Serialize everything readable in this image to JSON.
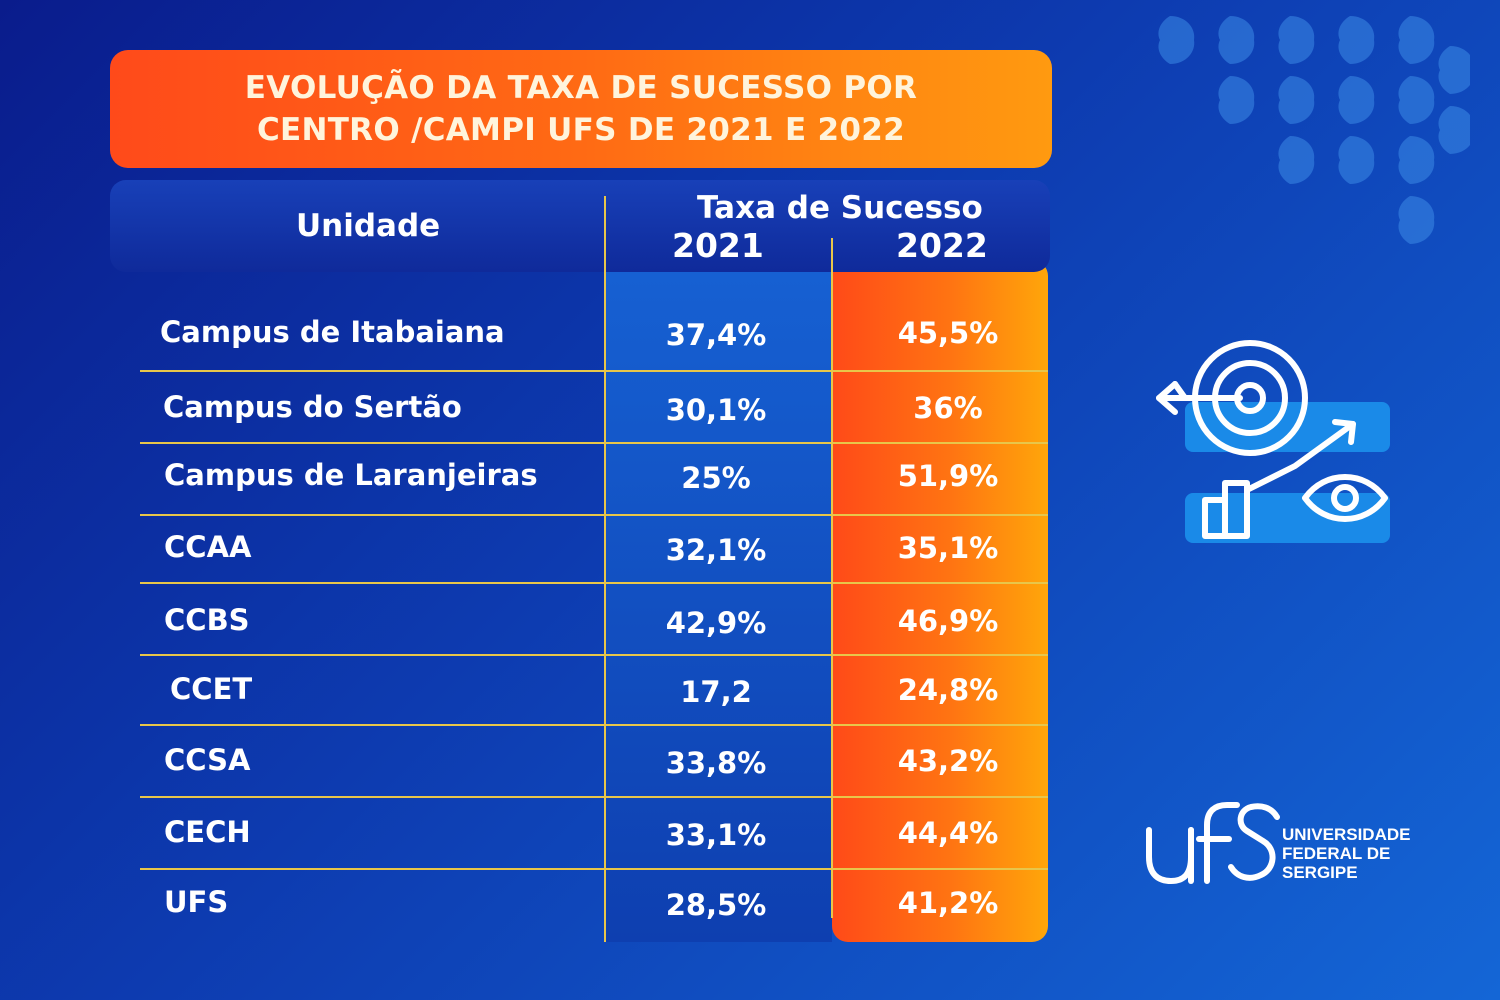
{
  "title": {
    "line1": "EVOLUÇÃO DA TAXA DE SUCESSO POR",
    "line2": "CENTRO /CAMPI UFS DE 2021 E 2022"
  },
  "header": {
    "unidade": "Unidade",
    "taxa": "Taxa de Sucesso",
    "year1": "2021",
    "year2": "2022"
  },
  "chart_data": {
    "type": "table",
    "title": "EVOLUÇÃO DA TAXA DE SUCESSO POR CENTRO /CAMPI UFS DE 2021 E 2022",
    "columns": [
      "Unidade",
      "2021",
      "2022"
    ],
    "rows": [
      {
        "unidade": "Campus de Itabaiana",
        "v2021": "37,4%",
        "v2022": "45,5%"
      },
      {
        "unidade": "Campus do Sertão",
        "v2021": "30,1%",
        "v2022": "36%"
      },
      {
        "unidade": "Campus de Laranjeiras",
        "v2021": "25%",
        "v2022": "51,9%"
      },
      {
        "unidade": "CCAA",
        "v2021": "32,1%",
        "v2022": "35,1%"
      },
      {
        "unidade": "CCBS",
        "v2021": "42,9%",
        "v2022": "46,9%"
      },
      {
        "unidade": "CCET",
        "v2021": "17,2",
        "v2022": "24,8%"
      },
      {
        "unidade": "CCSA",
        "v2021": "33,8%",
        "v2022": "43,2%"
      },
      {
        "unidade": "CECH",
        "v2021": "33,1%",
        "v2022": "44,4%"
      },
      {
        "unidade": "UFS",
        "v2021": "28,5%",
        "v2022": "41,2%"
      }
    ]
  },
  "logo": {
    "line1": "UNIVERSIDADE",
    "line2": "FEDERAL DE",
    "line3": "SERGIPE"
  },
  "colors": {
    "accent_orange": "#ff6a14",
    "line_gold": "#e8c64a"
  },
  "icons": [
    "target-growth-icon",
    "ufs-logo"
  ]
}
